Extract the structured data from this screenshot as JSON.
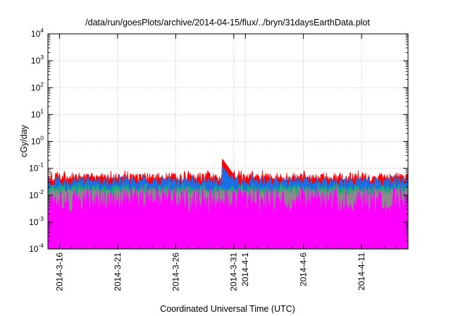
{
  "chart_data": {
    "type": "area",
    "title": "/data/run/goesPlots/archive/2014-04-15/flux/../bryn/31daysEarthData.plot",
    "xlabel": "Coordinated Universal Time (UTC)",
    "ylabel": "cGy/day",
    "yscale": "log",
    "ylim": [
      0.0001,
      10000
    ],
    "y_ticks": [
      {
        "base": "10",
        "exp": "4",
        "value": 10000
      },
      {
        "base": "10",
        "exp": "3",
        "value": 1000
      },
      {
        "base": "10",
        "exp": "2",
        "value": 100
      },
      {
        "base": "10",
        "exp": "1",
        "value": 10
      },
      {
        "base": "10",
        "exp": "0",
        "value": 1
      },
      {
        "base": "10",
        "exp": "-1",
        "value": 0.1
      },
      {
        "base": "10",
        "exp": "-2",
        "value": 0.01
      },
      {
        "base": "10",
        "exp": "-3",
        "value": 0.001
      },
      {
        "base": "10",
        "exp": "-4",
        "value": 0.0001
      }
    ],
    "xlim": [
      "2014-03-15",
      "2014-04-15"
    ],
    "x_ticks": [
      "2014-3-16",
      "2014-3-21",
      "2014-3-26",
      "2014-3-31",
      "2014-4-1",
      "2014-4-6",
      "2014-4-11"
    ],
    "grid": true,
    "colors": {
      "red_layer": "#ff0000",
      "blue_layer": "#1a6fe8",
      "green_layer": "#18b07a",
      "gray_layer": "#8a8a8a",
      "magenta_layer": "#ff00ff",
      "grid": "#b0b0b0"
    },
    "series": [
      {
        "layer": "red",
        "typical_value": 0.045,
        "value_range": [
          0.03,
          0.07
        ],
        "event": {
          "date": "2014-03-30",
          "peak": 0.23
        }
      },
      {
        "layer": "blue",
        "typical_value": 0.03,
        "value_range": [
          0.02,
          0.05
        ],
        "event": {
          "date": "2014-03-30",
          "peak": 0.12
        }
      },
      {
        "layer": "green",
        "typical_value": 0.018,
        "value_range": [
          0.012,
          0.025
        ]
      },
      {
        "layer": "gray",
        "typical_value": 0.013,
        "value_range": [
          0.009,
          0.018
        ]
      },
      {
        "layer": "magenta",
        "typical_value": 0.006,
        "value_range": [
          0.002,
          0.02
        ],
        "dropouts": [
          "2014-03-17",
          "2014-03-20",
          "2014-03-27",
          "2014-04-04",
          "2014-04-10",
          "2014-04-12"
        ]
      }
    ]
  }
}
